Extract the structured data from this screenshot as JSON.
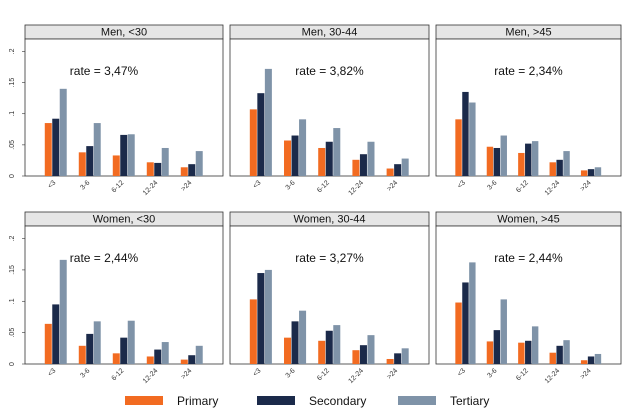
{
  "colors": {
    "primary": "#f26b21",
    "secondary": "#1b2a4a",
    "tertiary": "#7f93a8",
    "header_fill": "#e6e6e6",
    "frame": "#333333"
  },
  "legend": [
    "Primary",
    "Secondary",
    "Tertiary"
  ],
  "chart_data": {
    "type": "bar",
    "categories": [
      "<3",
      "3-6",
      "6-12",
      "12-24",
      ">24"
    ],
    "y_ticks": [
      0,
      0.05,
      0.1,
      0.15,
      0.2
    ],
    "y_tick_labels": [
      "0",
      ".05",
      ".1",
      ".15",
      ".2"
    ],
    "ylim": [
      0,
      0.22
    ],
    "panels": [
      {
        "title": "Men, <30",
        "annotation": "rate = 3,47%",
        "series": [
          {
            "name": "Primary",
            "values": [
              0.085,
              0.038,
              0.033,
              0.022,
              0.014
            ]
          },
          {
            "name": "Secondary",
            "values": [
              0.092,
              0.048,
              0.066,
              0.021,
              0.019
            ]
          },
          {
            "name": "Tertiary",
            "values": [
              0.14,
              0.085,
              0.067,
              0.045,
              0.04
            ]
          }
        ]
      },
      {
        "title": "Men, 30-44",
        "annotation": "rate = 3,82%",
        "series": [
          {
            "name": "Primary",
            "values": [
              0.107,
              0.057,
              0.045,
              0.026,
              0.012
            ]
          },
          {
            "name": "Secondary",
            "values": [
              0.133,
              0.065,
              0.055,
              0.035,
              0.019
            ]
          },
          {
            "name": "Tertiary",
            "values": [
              0.172,
              0.091,
              0.077,
              0.055,
              0.028
            ]
          }
        ]
      },
      {
        "title": "Men, >45",
        "annotation": "rate = 2,34%",
        "series": [
          {
            "name": "Primary",
            "values": [
              0.091,
              0.047,
              0.037,
              0.022,
              0.009
            ]
          },
          {
            "name": "Secondary",
            "values": [
              0.135,
              0.045,
              0.052,
              0.026,
              0.011
            ]
          },
          {
            "name": "Tertiary",
            "values": [
              0.118,
              0.065,
              0.056,
              0.04,
              0.014
            ]
          }
        ]
      },
      {
        "title": "Women, <30",
        "annotation": "rate = 2,44%",
        "series": [
          {
            "name": "Primary",
            "values": [
              0.064,
              0.029,
              0.017,
              0.012,
              0.007
            ]
          },
          {
            "name": "Secondary",
            "values": [
              0.095,
              0.048,
              0.042,
              0.023,
              0.014
            ]
          },
          {
            "name": "Tertiary",
            "values": [
              0.166,
              0.068,
              0.069,
              0.035,
              0.029
            ]
          }
        ]
      },
      {
        "title": "Women, 30-44",
        "annotation": "rate = 3,27%",
        "series": [
          {
            "name": "Primary",
            "values": [
              0.103,
              0.042,
              0.037,
              0.022,
              0.008
            ]
          },
          {
            "name": "Secondary",
            "values": [
              0.145,
              0.068,
              0.053,
              0.03,
              0.017
            ]
          },
          {
            "name": "Tertiary",
            "values": [
              0.15,
              0.085,
              0.062,
              0.046,
              0.025
            ]
          }
        ]
      },
      {
        "title": "Women, >45",
        "annotation": "rate = 2,44%",
        "series": [
          {
            "name": "Primary",
            "values": [
              0.098,
              0.036,
              0.034,
              0.018,
              0.006
            ]
          },
          {
            "name": "Secondary",
            "values": [
              0.13,
              0.054,
              0.037,
              0.029,
              0.012
            ]
          },
          {
            "name": "Tertiary",
            "values": [
              0.162,
              0.103,
              0.06,
              0.038,
              0.016
            ]
          }
        ]
      }
    ]
  }
}
